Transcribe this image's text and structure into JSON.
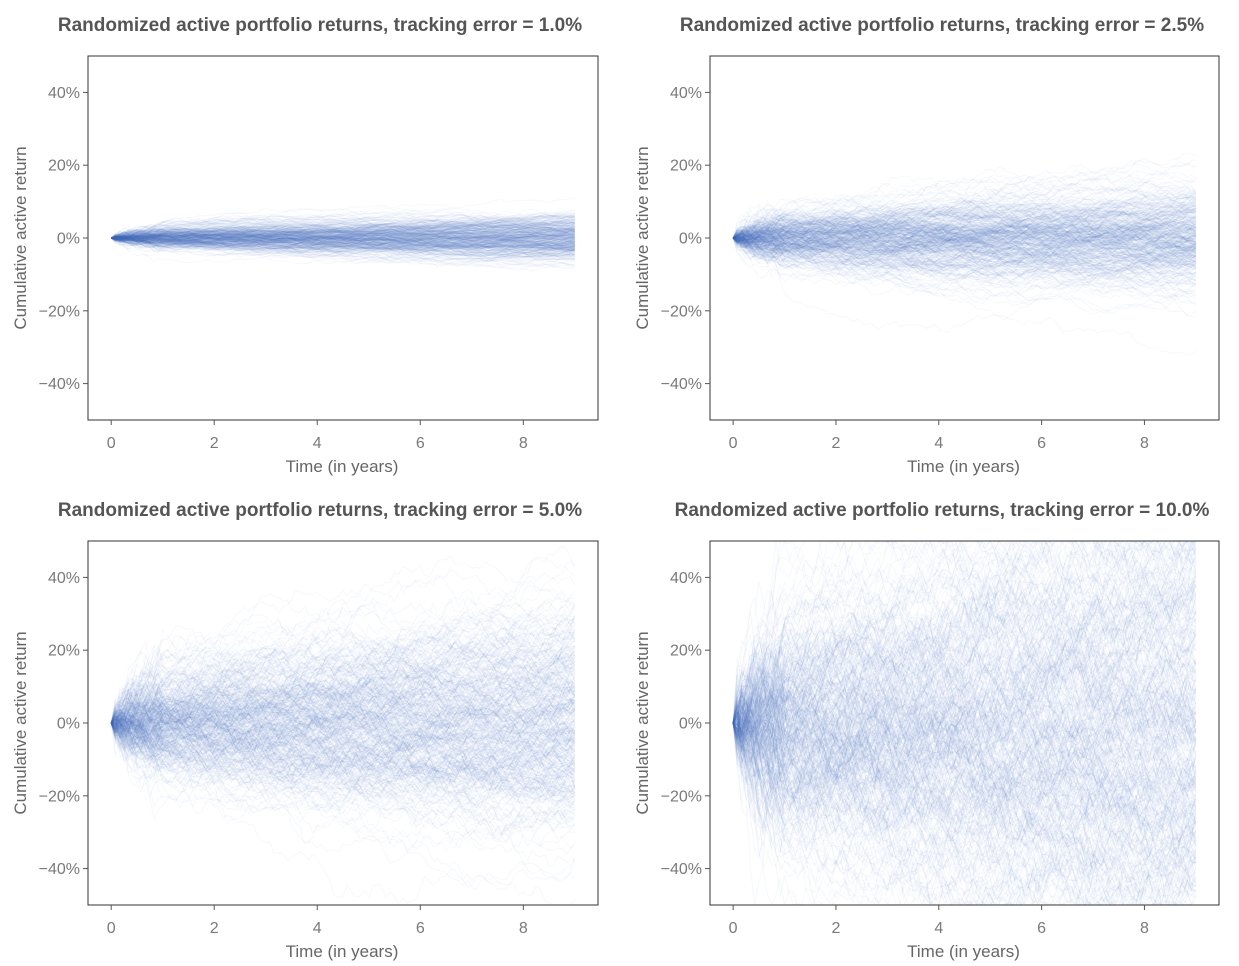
{
  "chart_data": [
    {
      "type": "line",
      "title": "Randomized active portfolio returns, tracking error = 1.0%",
      "xlabel": "Time (in years)",
      "ylabel": "Cumulative active return",
      "tracking_error": 0.01,
      "xlim": [
        -0.45,
        9.45
      ],
      "ylim": [
        -0.5,
        0.5
      ],
      "x_ticks": [
        0,
        2,
        4,
        6,
        8
      ],
      "x_tick_labels": [
        "0",
        "2",
        "4",
        "6",
        "8"
      ],
      "y_ticks": [
        0.4,
        0.2,
        0,
        -0.2,
        -0.4
      ],
      "y_tick_labels": [
        "40%",
        "20%",
        "0%",
        "−20%",
        "−40%"
      ],
      "x_range": [
        0,
        9
      ],
      "approx_envelope": {
        "x": [
          0,
          1,
          2,
          3,
          4,
          5,
          6,
          7,
          8,
          9
        ],
        "upper": [
          0,
          0.035,
          0.045,
          0.055,
          0.065,
          0.07,
          0.075,
          0.08,
          0.085,
          0.09
        ],
        "lower": [
          0,
          -0.035,
          -0.045,
          -0.055,
          -0.065,
          -0.07,
          -0.08,
          -0.085,
          -0.09,
          -0.095
        ]
      },
      "series_color": "#4a7ec0",
      "grid": false,
      "legend": "none"
    },
    {
      "type": "line",
      "title": "Randomized active portfolio returns, tracking error = 2.5%",
      "xlabel": "Time (in years)",
      "ylabel": "Cumulative active return",
      "tracking_error": 0.025,
      "xlim": [
        -0.45,
        9.45
      ],
      "ylim": [
        -0.5,
        0.5
      ],
      "x_ticks": [
        0,
        2,
        4,
        6,
        8
      ],
      "x_tick_labels": [
        "0",
        "2",
        "4",
        "6",
        "8"
      ],
      "y_ticks": [
        0.4,
        0.2,
        0,
        -0.2,
        -0.4
      ],
      "y_tick_labels": [
        "40%",
        "20%",
        "0%",
        "−20%",
        "−40%"
      ],
      "x_range": [
        0,
        9
      ],
      "approx_envelope": {
        "x": [
          0,
          1,
          2,
          3,
          4,
          5,
          6,
          7,
          8,
          9
        ],
        "upper": [
          0,
          0.08,
          0.11,
          0.14,
          0.17,
          0.19,
          0.21,
          0.23,
          0.25,
          0.26
        ],
        "lower": [
          0,
          -0.08,
          -0.11,
          -0.14,
          -0.17,
          -0.19,
          -0.21,
          -0.22,
          -0.23,
          -0.24
        ]
      },
      "series_color": "#4a7ec0",
      "grid": false,
      "legend": "none"
    },
    {
      "type": "line",
      "title": "Randomized active portfolio returns, tracking error = 5.0%",
      "xlabel": "Time (in years)",
      "ylabel": "Cumulative active return",
      "tracking_error": 0.05,
      "xlim": [
        -0.45,
        9.45
      ],
      "ylim": [
        -0.5,
        0.5
      ],
      "x_ticks": [
        0,
        2,
        4,
        6,
        8
      ],
      "x_tick_labels": [
        "0",
        "2",
        "4",
        "6",
        "8"
      ],
      "y_ticks": [
        0.4,
        0.2,
        0,
        -0.2,
        -0.4
      ],
      "y_tick_labels": [
        "40%",
        "20%",
        "0%",
        "−20%",
        "−40%"
      ],
      "x_range": [
        0,
        9
      ],
      "approx_envelope": {
        "x": [
          0,
          1,
          2,
          3,
          4,
          5,
          6,
          7,
          8,
          9
        ],
        "upper": [
          0,
          0.16,
          0.23,
          0.29,
          0.34,
          0.39,
          0.43,
          0.47,
          0.49,
          0.5
        ],
        "lower": [
          0,
          -0.16,
          -0.22,
          -0.27,
          -0.31,
          -0.35,
          -0.38,
          -0.41,
          -0.43,
          -0.45
        ]
      },
      "series_color": "#4a7ec0",
      "grid": false,
      "legend": "none"
    },
    {
      "type": "line",
      "title": "Randomized active portfolio returns, tracking error = 10.0%",
      "xlabel": "Time (in years)",
      "ylabel": "Cumulative active return",
      "tracking_error": 0.1,
      "xlim": [
        -0.45,
        9.45
      ],
      "ylim": [
        -0.5,
        0.5
      ],
      "x_ticks": [
        0,
        2,
        4,
        6,
        8
      ],
      "x_tick_labels": [
        "0",
        "2",
        "4",
        "6",
        "8"
      ],
      "y_ticks": [
        0.4,
        0.2,
        0,
        -0.2,
        -0.4
      ],
      "y_tick_labels": [
        "40%",
        "20%",
        "0%",
        "−20%",
        "−40%"
      ],
      "x_range": [
        0,
        9
      ],
      "approx_envelope": {
        "x": [
          0,
          1,
          2,
          3,
          4,
          5,
          6,
          7,
          8,
          9
        ],
        "upper": [
          0,
          0.32,
          0.45,
          0.5,
          0.5,
          0.5,
          0.5,
          0.5,
          0.5,
          0.5
        ],
        "lower": [
          0,
          -0.32,
          -0.45,
          -0.5,
          -0.5,
          -0.5,
          -0.5,
          -0.5,
          -0.5,
          -0.5
        ]
      },
      "series_color": "#4a7ec0",
      "grid": false,
      "legend": "none"
    }
  ]
}
